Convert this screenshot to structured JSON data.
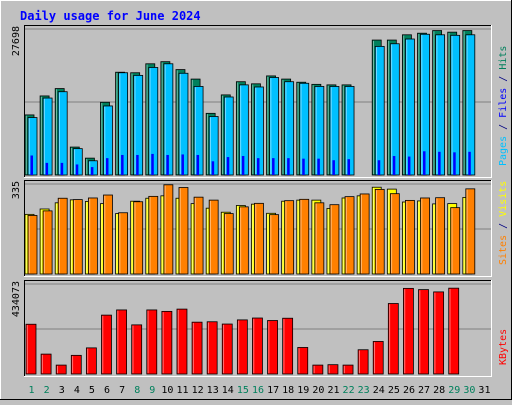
{
  "chart_data": {
    "type": "bar",
    "title": "Daily usage for June 2024",
    "categories": [
      "1",
      "2",
      "3",
      "4",
      "5",
      "6",
      "7",
      "8",
      "9",
      "10",
      "11",
      "12",
      "13",
      "14",
      "15",
      "16",
      "17",
      "18",
      "19",
      "20",
      "21",
      "22",
      "23",
      "24",
      "25",
      "26",
      "27",
      "28",
      "29",
      "30",
      "31"
    ],
    "weekend_days": [
      "1",
      "2",
      "8",
      "9",
      "15",
      "16",
      "22",
      "23",
      "29",
      "30"
    ],
    "x_label_colors": {
      "weekday": "#000000",
      "weekend": "#00805c"
    },
    "panels": [
      {
        "id": "hits",
        "ylabel_parts": [
          {
            "text": "Pages",
            "color": "#00c0ff"
          },
          {
            "text": " / ",
            "color": "#000080"
          },
          {
            "text": "Files",
            "color": "#0000ff"
          },
          {
            "text": " / ",
            "color": "#000080"
          },
          {
            "text": "Hits",
            "color": "#00805c"
          }
        ],
        "max_label": "27698",
        "ylim": [
          0,
          27698
        ],
        "series": [
          {
            "name": "Hits",
            "color": "#00805c",
            "values": [
              11400,
              15000,
              16400,
              5300,
              3200,
              13800,
              19500,
              19400,
              21100,
              21500,
              20000,
              18200,
              11700,
              15200,
              17700,
              17300,
              18800,
              18200,
              17600,
              17200,
              17100,
              17100,
              0,
              25600,
              25600,
              26600,
              26900,
              27400,
              27100,
              27400,
              null
            ]
          },
          {
            "name": "Files",
            "color": "#00c0ff",
            "values": [
              10900,
              14600,
              15800,
              5000,
              2700,
              13100,
              19400,
              18900,
              20400,
              21100,
              19300,
              16800,
              11100,
              14800,
              17100,
              16700,
              18500,
              17700,
              17400,
              16800,
              16800,
              16800,
              0,
              24400,
              24900,
              25800,
              26700,
              26600,
              26500,
              26600,
              null
            ]
          },
          {
            "name": "Pages",
            "color": "#0000ff",
            "values": [
              3700,
              2300,
              2300,
              2000,
              1500,
              3200,
              3800,
              3800,
              4000,
              3800,
              3900,
              3800,
              2600,
              3400,
              3600,
              3200,
              3200,
              3200,
              3100,
              3100,
              2800,
              3000,
              0,
              2800,
              3600,
              3500,
              4500,
              4400,
              4300,
              4400,
              null
            ]
          }
        ]
      },
      {
        "id": "visits",
        "ylabel_parts": [
          {
            "text": "Sites",
            "color": "#ff8000"
          },
          {
            "text": " / ",
            "color": "#000080"
          },
          {
            "text": "Visits",
            "color": "#ffff00"
          }
        ],
        "max_label": "335",
        "ylim": [
          0,
          335
        ],
        "series": [
          {
            "name": "Visits",
            "color": "#ffff00",
            "values": [
              222,
              242,
              265,
              276,
              270,
              262,
              225,
              271,
              282,
              291,
              282,
              262,
              245,
              230,
              255,
              260,
              226,
              271,
              275,
              275,
              244,
              283,
              291,
              323,
              316,
              268,
              272,
              261,
              262,
              285,
              null
            ]
          },
          {
            "name": "Sites",
            "color": "#ff8000",
            "values": [
              218,
              235,
              282,
              277,
              283,
              294,
              228,
              269,
              289,
              332,
              322,
              286,
              275,
              225,
              250,
              263,
              221,
              273,
              278,
              265,
              258,
              288,
              298,
              315,
              299,
              274,
              283,
              284,
              247,
              317,
              null
            ]
          }
        ]
      },
      {
        "id": "kbytes",
        "ylabel_parts": [
          {
            "text": "KBytes",
            "color": "#ff0000"
          }
        ],
        "max_label": "434073",
        "ylim": [
          0,
          434073
        ],
        "series": [
          {
            "name": "KBytes",
            "color": "#ff0000",
            "values": [
              240000,
              96000,
              43000,
              90000,
              126000,
              284000,
              309000,
              237000,
              309000,
              302000,
              313000,
              250000,
              252000,
              241000,
              261000,
              270000,
              258000,
              269000,
              128000,
              43000,
              45000,
              43000,
              117000,
              157000,
              340000,
              413000,
              407000,
              396000,
              414000,
              null,
              null
            ]
          }
        ]
      }
    ]
  }
}
